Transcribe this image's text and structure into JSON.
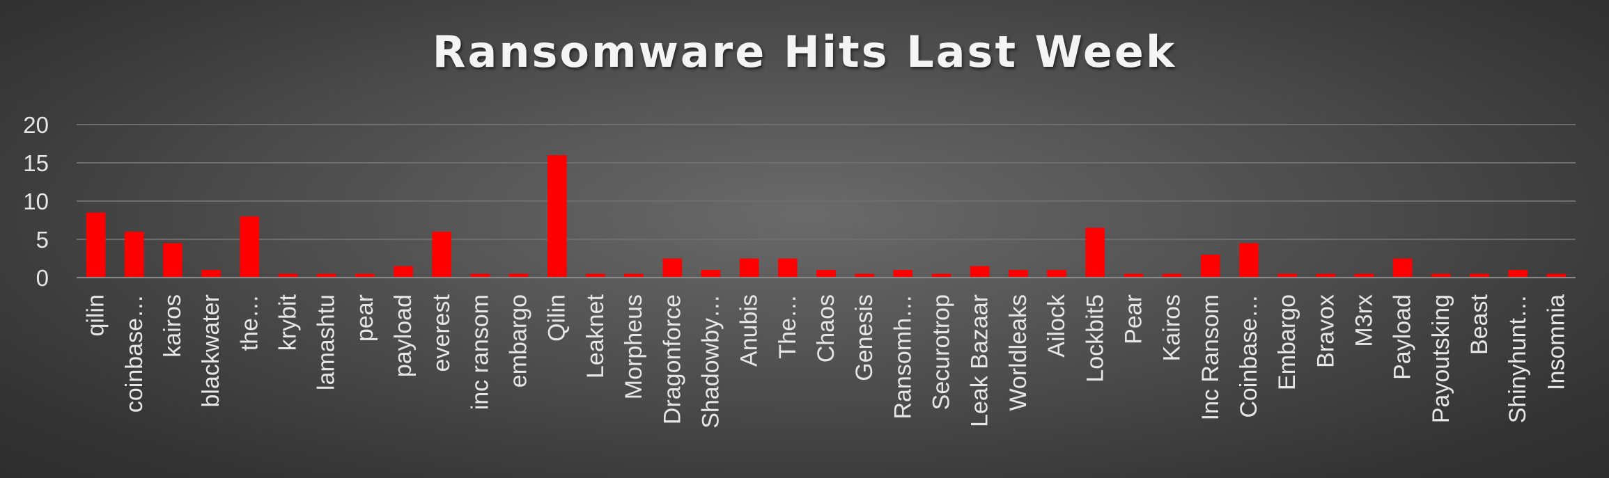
{
  "chart_data": {
    "type": "bar",
    "title": "Ransomware Hits Last Week",
    "xlabel": "",
    "ylabel": "",
    "ylim": [
      0,
      20
    ],
    "yticks": [
      0,
      5,
      10,
      15,
      20
    ],
    "grid": true,
    "legend": "none",
    "bar_color": "#ff0000",
    "categories": [
      "qilin",
      "coinbase…",
      "kairos",
      "blackwater",
      "the…",
      "krybit",
      "lamashtu",
      "pear",
      "payload",
      "everest",
      "inc ransom",
      "embargo",
      "Qilin",
      "Leaknet",
      "Morpheus",
      "Dragonforce",
      "Shadowby…",
      "Anubis",
      "The…",
      "Chaos",
      "Genesis",
      "Ransomh…",
      "Securotrop",
      "Leak Bazaar",
      "Worldleaks",
      "Ailock",
      "Lockbit5",
      "Pear",
      "Kairos",
      "Inc Ransom",
      "Coinbase…",
      "Embargo",
      "Bravox",
      "M3rx",
      "Payload",
      "Payoutsking",
      "Beast",
      "Shinyhunt…",
      "Insomnia"
    ],
    "values": [
      8.5,
      6,
      4.5,
      1,
      8,
      0.5,
      0.5,
      0.5,
      1.5,
      6,
      0.5,
      0.5,
      16,
      0.5,
      0.5,
      2.5,
      1,
      2.5,
      2.5,
      1,
      0.5,
      1,
      0.5,
      1.5,
      1,
      1,
      6.5,
      0.5,
      0.5,
      3,
      4.5,
      0.5,
      0.5,
      0.5,
      2.5,
      0.5,
      0.5,
      1,
      0.5
    ]
  }
}
